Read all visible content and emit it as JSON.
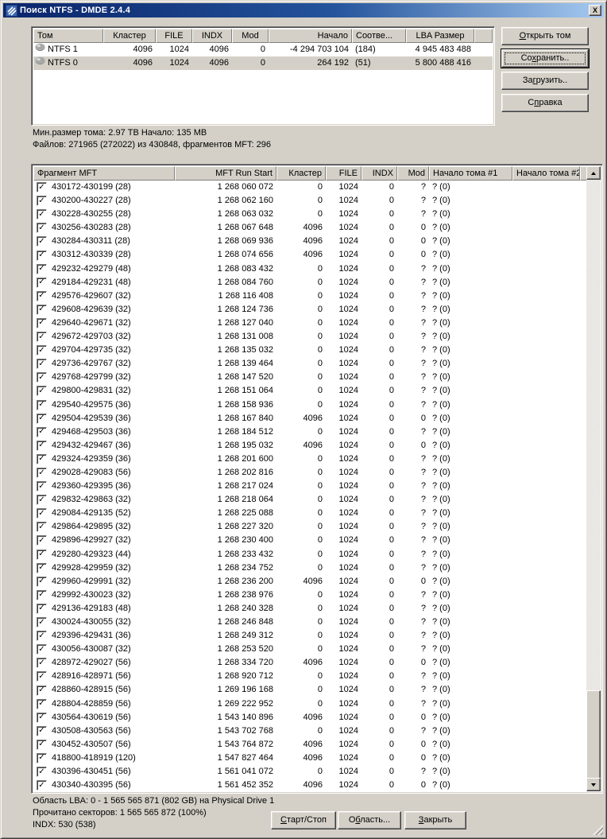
{
  "window": {
    "title": "Поиск NTFS - DMDE 2.4.4",
    "close_glyph": "X"
  },
  "volumes_panel": {
    "columns": [
      "Том",
      "Кластер",
      "FILE",
      "INDX",
      "Mod",
      "Начало",
      "Соотве...",
      "LBA Размер"
    ],
    "rows": [
      {
        "volume": "NTFS 1",
        "cluster": "4096",
        "file": "1024",
        "indx": "4096",
        "mod": "0",
        "start": "-4 294 703 104",
        "match": "(184)",
        "lba_size": "4 945 483 488",
        "selected": false
      },
      {
        "volume": "NTFS 0",
        "cluster": "4096",
        "file": "1024",
        "indx": "4096",
        "mod": "0",
        "start": "264 192",
        "match": "(51)",
        "lba_size": "5 800 488 416",
        "selected": true
      }
    ]
  },
  "side_buttons": {
    "open": {
      "label": "Открыть том",
      "mnemonic": 0
    },
    "save": {
      "label": "Сохранить..",
      "mnemonic": 2
    },
    "load": {
      "label": "Загрузить..",
      "mnemonic": 2
    },
    "help": {
      "label": "Справка",
      "mnemonic": 1
    }
  },
  "info": {
    "line1": "Мин.размер тома: 2.97 TB Начало: 135 MB",
    "line2": "Файлов: 271965 (272022) из 430848, фрагментов MFT: 296"
  },
  "mft_table": {
    "columns": [
      "Фрагмент MFT",
      "MFT Run Start",
      "Кластер",
      "FILE",
      "INDX",
      "Mod",
      "Начало тома #1",
      "Начало тома #2"
    ],
    "check_glyph": "✓",
    "rows": [
      {
        "checked": true,
        "fragment": "430172-430199 (28)",
        "run_start": "1 268 060 072",
        "cluster": "0",
        "file": "1024",
        "indx": "0",
        "mod": "?",
        "start1": "? (0)",
        "start2": ""
      },
      {
        "checked": true,
        "fragment": "430200-430227 (28)",
        "run_start": "1 268 062 160",
        "cluster": "0",
        "file": "1024",
        "indx": "0",
        "mod": "?",
        "start1": "? (0)",
        "start2": ""
      },
      {
        "checked": true,
        "fragment": "430228-430255 (28)",
        "run_start": "1 268 063 032",
        "cluster": "0",
        "file": "1024",
        "indx": "0",
        "mod": "?",
        "start1": "? (0)",
        "start2": ""
      },
      {
        "checked": true,
        "fragment": "430256-430283 (28)",
        "run_start": "1 268 067 648",
        "cluster": "4096",
        "file": "1024",
        "indx": "0",
        "mod": "0",
        "start1": "? (0)",
        "start2": ""
      },
      {
        "checked": true,
        "fragment": "430284-430311 (28)",
        "run_start": "1 268 069 936",
        "cluster": "4096",
        "file": "1024",
        "indx": "0",
        "mod": "0",
        "start1": "? (0)",
        "start2": ""
      },
      {
        "checked": true,
        "fragment": "430312-430339 (28)",
        "run_start": "1 268 074 656",
        "cluster": "4096",
        "file": "1024",
        "indx": "0",
        "mod": "0",
        "start1": "? (0)",
        "start2": ""
      },
      {
        "checked": true,
        "fragment": "429232-429279 (48)",
        "run_start": "1 268 083 432",
        "cluster": "0",
        "file": "1024",
        "indx": "0",
        "mod": "?",
        "start1": "? (0)",
        "start2": ""
      },
      {
        "checked": true,
        "fragment": "429184-429231 (48)",
        "run_start": "1 268 084 760",
        "cluster": "0",
        "file": "1024",
        "indx": "0",
        "mod": "?",
        "start1": "? (0)",
        "start2": ""
      },
      {
        "checked": true,
        "fragment": "429576-429607 (32)",
        "run_start": "1 268 116 408",
        "cluster": "0",
        "file": "1024",
        "indx": "0",
        "mod": "?",
        "start1": "? (0)",
        "start2": ""
      },
      {
        "checked": true,
        "fragment": "429608-429639 (32)",
        "run_start": "1 268 124 736",
        "cluster": "0",
        "file": "1024",
        "indx": "0",
        "mod": "?",
        "start1": "? (0)",
        "start2": ""
      },
      {
        "checked": true,
        "fragment": "429640-429671 (32)",
        "run_start": "1 268 127 040",
        "cluster": "0",
        "file": "1024",
        "indx": "0",
        "mod": "?",
        "start1": "? (0)",
        "start2": ""
      },
      {
        "checked": true,
        "fragment": "429672-429703 (32)",
        "run_start": "1 268 131 008",
        "cluster": "0",
        "file": "1024",
        "indx": "0",
        "mod": "?",
        "start1": "? (0)",
        "start2": ""
      },
      {
        "checked": true,
        "fragment": "429704-429735 (32)",
        "run_start": "1 268 135 032",
        "cluster": "0",
        "file": "1024",
        "indx": "0",
        "mod": "?",
        "start1": "? (0)",
        "start2": ""
      },
      {
        "checked": true,
        "fragment": "429736-429767 (32)",
        "run_start": "1 268 139 464",
        "cluster": "0",
        "file": "1024",
        "indx": "0",
        "mod": "?",
        "start1": "? (0)",
        "start2": ""
      },
      {
        "checked": true,
        "fragment": "429768-429799 (32)",
        "run_start": "1 268 147 520",
        "cluster": "0",
        "file": "1024",
        "indx": "0",
        "mod": "?",
        "start1": "? (0)",
        "start2": ""
      },
      {
        "checked": true,
        "fragment": "429800-429831 (32)",
        "run_start": "1 268 151 064",
        "cluster": "0",
        "file": "1024",
        "indx": "0",
        "mod": "?",
        "start1": "? (0)",
        "start2": ""
      },
      {
        "checked": true,
        "fragment": "429540-429575 (36)",
        "run_start": "1 268 158 936",
        "cluster": "0",
        "file": "1024",
        "indx": "0",
        "mod": "?",
        "start1": "? (0)",
        "start2": ""
      },
      {
        "checked": true,
        "fragment": "429504-429539 (36)",
        "run_start": "1 268 167 840",
        "cluster": "4096",
        "file": "1024",
        "indx": "0",
        "mod": "0",
        "start1": "? (0)",
        "start2": ""
      },
      {
        "checked": true,
        "fragment": "429468-429503 (36)",
        "run_start": "1 268 184 512",
        "cluster": "0",
        "file": "1024",
        "indx": "0",
        "mod": "?",
        "start1": "? (0)",
        "start2": ""
      },
      {
        "checked": true,
        "fragment": "429432-429467 (36)",
        "run_start": "1 268 195 032",
        "cluster": "4096",
        "file": "1024",
        "indx": "0",
        "mod": "0",
        "start1": "? (0)",
        "start2": ""
      },
      {
        "checked": true,
        "fragment": "429324-429359 (36)",
        "run_start": "1 268 201 600",
        "cluster": "0",
        "file": "1024",
        "indx": "0",
        "mod": "?",
        "start1": "? (0)",
        "start2": ""
      },
      {
        "checked": true,
        "fragment": "429028-429083 (56)",
        "run_start": "1 268 202 816",
        "cluster": "0",
        "file": "1024",
        "indx": "0",
        "mod": "?",
        "start1": "? (0)",
        "start2": ""
      },
      {
        "checked": true,
        "fragment": "429360-429395 (36)",
        "run_start": "1 268 217 024",
        "cluster": "0",
        "file": "1024",
        "indx": "0",
        "mod": "?",
        "start1": "? (0)",
        "start2": ""
      },
      {
        "checked": true,
        "fragment": "429832-429863 (32)",
        "run_start": "1 268 218 064",
        "cluster": "0",
        "file": "1024",
        "indx": "0",
        "mod": "?",
        "start1": "? (0)",
        "start2": ""
      },
      {
        "checked": true,
        "fragment": "429084-429135 (52)",
        "run_start": "1 268 225 088",
        "cluster": "0",
        "file": "1024",
        "indx": "0",
        "mod": "?",
        "start1": "? (0)",
        "start2": ""
      },
      {
        "checked": true,
        "fragment": "429864-429895 (32)",
        "run_start": "1 268 227 320",
        "cluster": "0",
        "file": "1024",
        "indx": "0",
        "mod": "?",
        "start1": "? (0)",
        "start2": ""
      },
      {
        "checked": true,
        "fragment": "429896-429927 (32)",
        "run_start": "1 268 230 400",
        "cluster": "0",
        "file": "1024",
        "indx": "0",
        "mod": "?",
        "start1": "? (0)",
        "start2": ""
      },
      {
        "checked": true,
        "fragment": "429280-429323 (44)",
        "run_start": "1 268 233 432",
        "cluster": "0",
        "file": "1024",
        "indx": "0",
        "mod": "?",
        "start1": "? (0)",
        "start2": ""
      },
      {
        "checked": true,
        "fragment": "429928-429959 (32)",
        "run_start": "1 268 234 752",
        "cluster": "0",
        "file": "1024",
        "indx": "0",
        "mod": "?",
        "start1": "? (0)",
        "start2": ""
      },
      {
        "checked": true,
        "fragment": "429960-429991 (32)",
        "run_start": "1 268 236 200",
        "cluster": "4096",
        "file": "1024",
        "indx": "0",
        "mod": "0",
        "start1": "? (0)",
        "start2": ""
      },
      {
        "checked": true,
        "fragment": "429992-430023 (32)",
        "run_start": "1 268 238 976",
        "cluster": "0",
        "file": "1024",
        "indx": "0",
        "mod": "?",
        "start1": "? (0)",
        "start2": ""
      },
      {
        "checked": true,
        "fragment": "429136-429183 (48)",
        "run_start": "1 268 240 328",
        "cluster": "0",
        "file": "1024",
        "indx": "0",
        "mod": "?",
        "start1": "? (0)",
        "start2": ""
      },
      {
        "checked": true,
        "fragment": "430024-430055 (32)",
        "run_start": "1 268 246 848",
        "cluster": "0",
        "file": "1024",
        "indx": "0",
        "mod": "?",
        "start1": "? (0)",
        "start2": ""
      },
      {
        "checked": true,
        "fragment": "429396-429431 (36)",
        "run_start": "1 268 249 312",
        "cluster": "0",
        "file": "1024",
        "indx": "0",
        "mod": "?",
        "start1": "? (0)",
        "start2": ""
      },
      {
        "checked": true,
        "fragment": "430056-430087 (32)",
        "run_start": "1 268 253 520",
        "cluster": "0",
        "file": "1024",
        "indx": "0",
        "mod": "?",
        "start1": "? (0)",
        "start2": ""
      },
      {
        "checked": true,
        "fragment": "428972-429027 (56)",
        "run_start": "1 268 334 720",
        "cluster": "4096",
        "file": "1024",
        "indx": "0",
        "mod": "0",
        "start1": "? (0)",
        "start2": ""
      },
      {
        "checked": true,
        "fragment": "428916-428971 (56)",
        "run_start": "1 268 920 712",
        "cluster": "0",
        "file": "1024",
        "indx": "0",
        "mod": "?",
        "start1": "? (0)",
        "start2": ""
      },
      {
        "checked": true,
        "fragment": "428860-428915 (56)",
        "run_start": "1 269 196 168",
        "cluster": "0",
        "file": "1024",
        "indx": "0",
        "mod": "?",
        "start1": "? (0)",
        "start2": ""
      },
      {
        "checked": true,
        "fragment": "428804-428859 (56)",
        "run_start": "1 269 222 952",
        "cluster": "0",
        "file": "1024",
        "indx": "0",
        "mod": "?",
        "start1": "? (0)",
        "start2": ""
      },
      {
        "checked": true,
        "fragment": "430564-430619 (56)",
        "run_start": "1 543 140 896",
        "cluster": "4096",
        "file": "1024",
        "indx": "0",
        "mod": "0",
        "start1": "? (0)",
        "start2": ""
      },
      {
        "checked": true,
        "fragment": "430508-430563 (56)",
        "run_start": "1 543 702 768",
        "cluster": "0",
        "file": "1024",
        "indx": "0",
        "mod": "?",
        "start1": "? (0)",
        "start2": ""
      },
      {
        "checked": true,
        "fragment": "430452-430507 (56)",
        "run_start": "1 543 764 872",
        "cluster": "4096",
        "file": "1024",
        "indx": "0",
        "mod": "0",
        "start1": "? (0)",
        "start2": ""
      },
      {
        "checked": true,
        "fragment": "418800-418919 (120)",
        "run_start": "1 547 827 464",
        "cluster": "4096",
        "file": "1024",
        "indx": "0",
        "mod": "0",
        "start1": "? (0)",
        "start2": ""
      },
      {
        "checked": true,
        "fragment": "430396-430451 (56)",
        "run_start": "1 561 041 072",
        "cluster": "0",
        "file": "1024",
        "indx": "0",
        "mod": "?",
        "start1": "? (0)",
        "start2": ""
      },
      {
        "checked": true,
        "fragment": "430340-430395 (56)",
        "run_start": "1 561 452 352",
        "cluster": "4096",
        "file": "1024",
        "indx": "0",
        "mod": "0",
        "start1": "? (0)",
        "start2": ""
      }
    ]
  },
  "status": {
    "line1": "Область LBA: 0 - 1 565 565 871 (802 GB) на Physical Drive 1",
    "line2": "Прочитано секторов: 1 565 565 872 (100%)",
    "line3": "INDX: 530 (538)"
  },
  "bottom_buttons": {
    "start_stop": {
      "label": "Старт/Стоп",
      "mnemonic": 0
    },
    "area": {
      "label": "Область...",
      "mnemonic": 1
    },
    "close": {
      "label": "Закрыть",
      "mnemonic": 0
    }
  }
}
